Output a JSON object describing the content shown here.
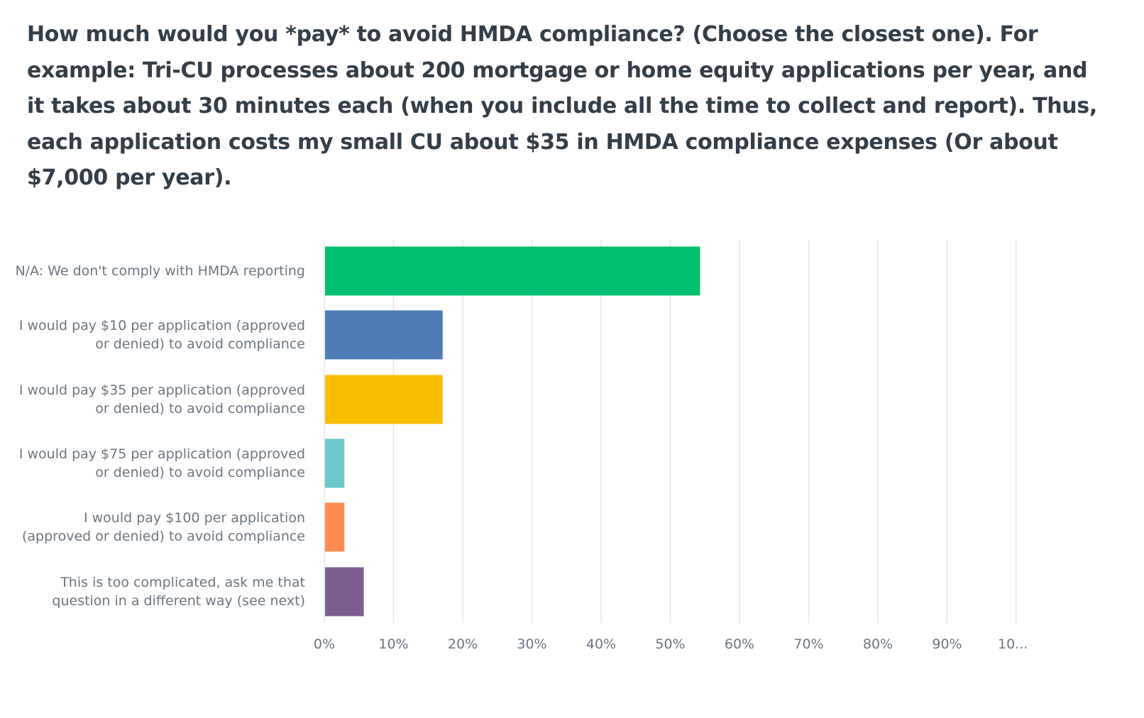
{
  "question": "How much would you *pay* to avoid HMDA compliance? (Choose the closest one). For example: Tri-CU processes about 200 mortgage or home equity applications per year, and it takes about 30 minutes each (when you include all the time to collect and report). Thus, each application costs my small CU about $35 in HMDA compliance expenses (Or about $7,000 per year).",
  "chart_data": {
    "type": "bar",
    "orientation": "horizontal",
    "title": "",
    "xlabel": "",
    "ylabel": "",
    "xlim": [
      0,
      100
    ],
    "grid": true,
    "categories": [
      "N/A: We don't comply with HMDA reporting",
      "I would pay $10 per application (approved or denied) to avoid compliance",
      "I would pay $35 per application (approved or denied) to avoid compliance",
      "I would pay $75 per application (approved or denied) to avoid compliance",
      "I would pay $100 per application (approved or denied) to avoid compliance",
      "This is too complicated, ask me that question in a different way (see next)"
    ],
    "values": [
      54.3,
      17.1,
      17.1,
      2.9,
      2.9,
      5.7
    ],
    "colors": [
      "#00bf6f",
      "#507cb6",
      "#f9be00",
      "#6bc8cd",
      "#ff8b4f",
      "#7d5e90"
    ],
    "tick_labels": [
      "0%",
      "10%",
      "20%",
      "30%",
      "40%",
      "50%",
      "60%",
      "70%",
      "80%",
      "90%",
      "10..."
    ]
  }
}
